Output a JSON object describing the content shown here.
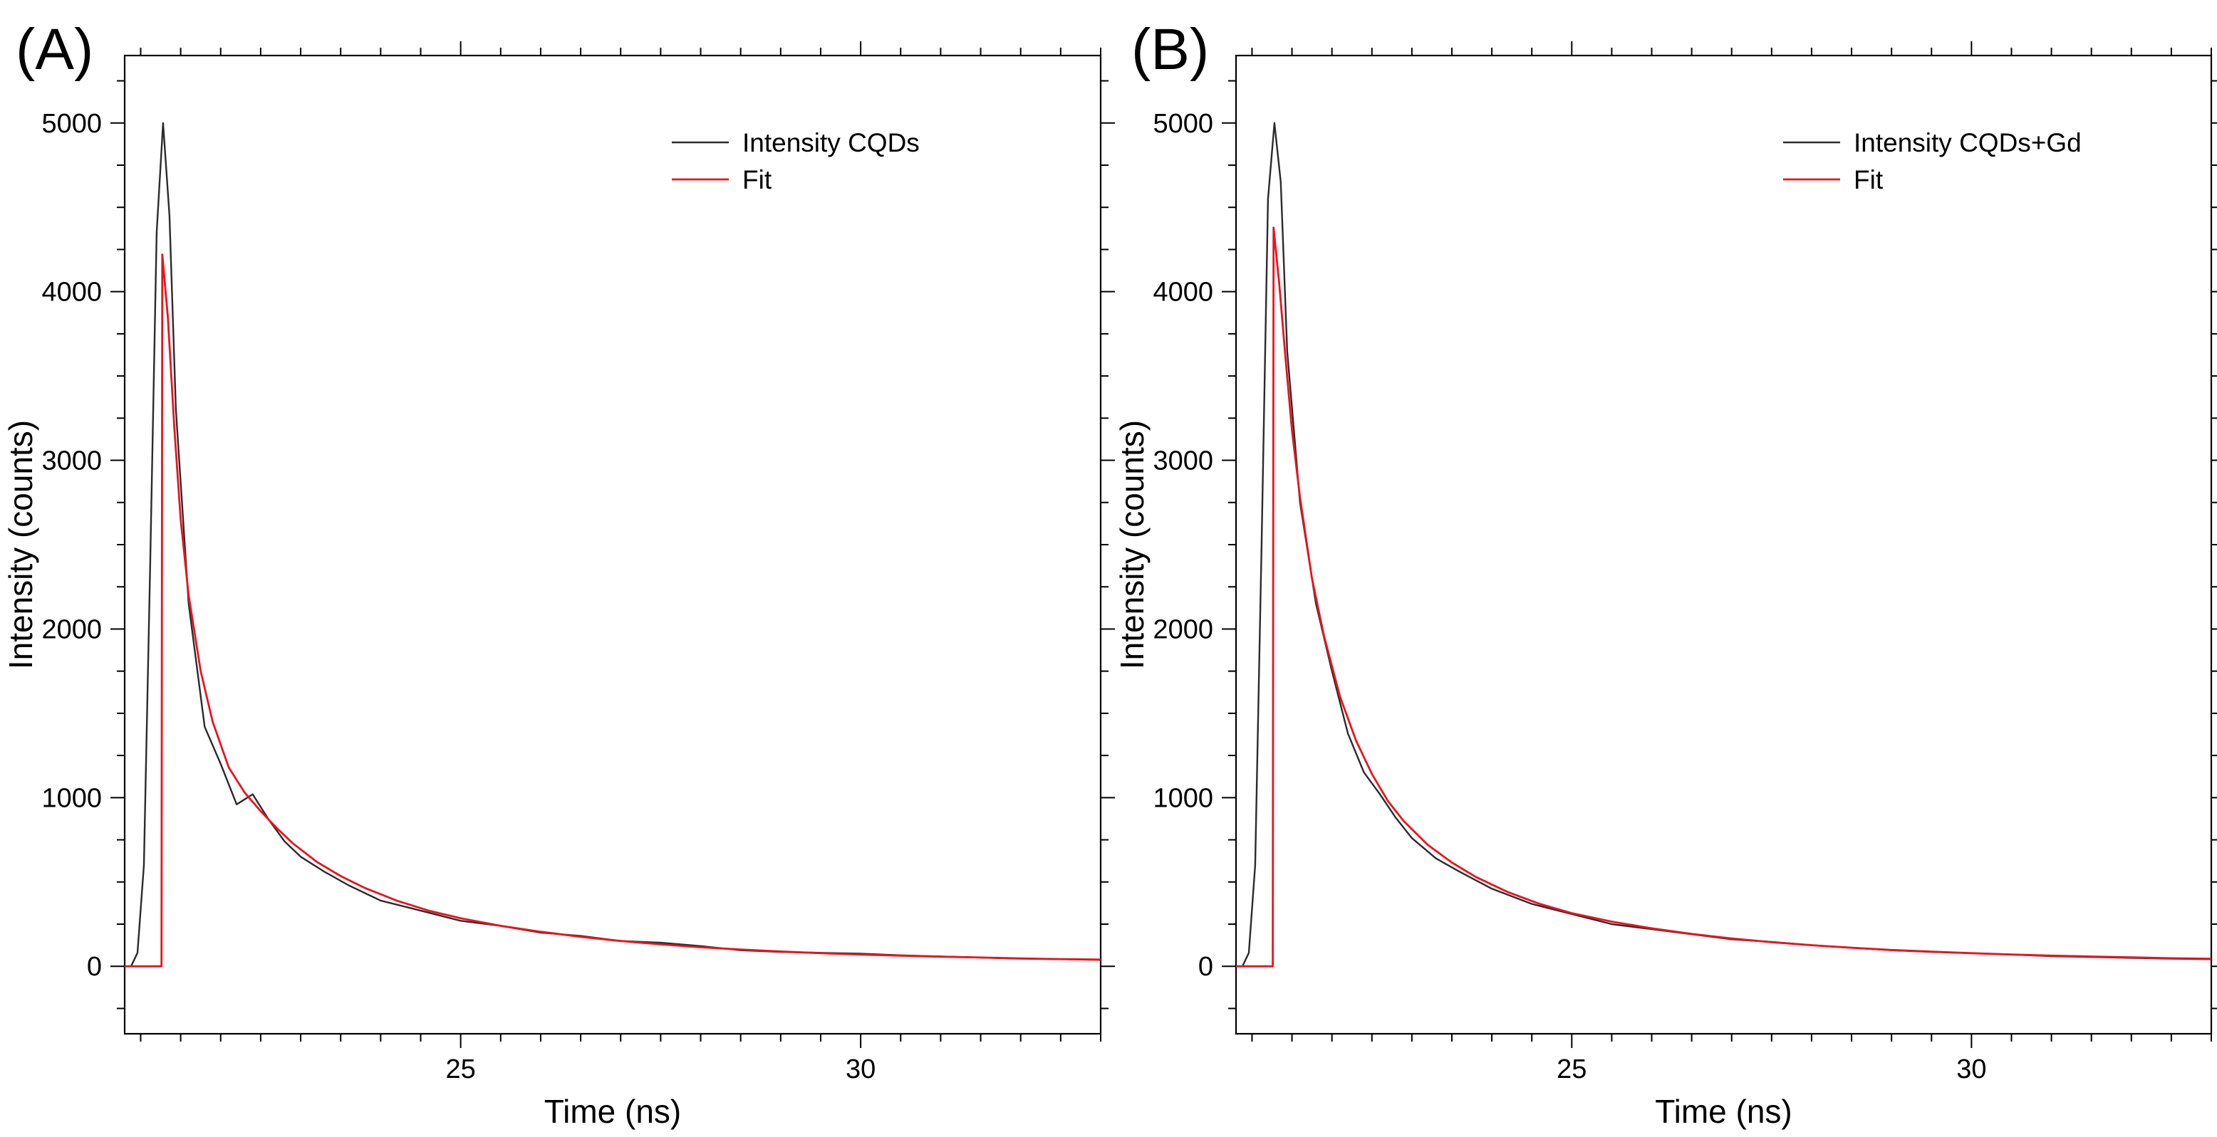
{
  "chart_data": [
    {
      "type": "line",
      "panel": "(A)",
      "xlabel": "Time (ns)",
      "ylabel": "Intensity (counts)",
      "xlim": [
        20.8,
        33.0
      ],
      "ylim": [
        -400,
        5400
      ],
      "x_ticks": [
        25,
        30
      ],
      "y_ticks": [
        0,
        1000,
        2000,
        3000,
        4000,
        5000
      ],
      "grid": false,
      "legend_position": "top-right",
      "series": [
        {
          "name": "Intensity CQDs",
          "color": "#2b2b2b",
          "x": [
            20.8,
            20.88,
            20.96,
            21.04,
            21.12,
            21.2,
            21.28,
            21.36,
            21.44,
            21.6,
            21.8,
            22.0,
            22.2,
            22.4,
            22.6,
            22.8,
            23.0,
            23.3,
            23.6,
            24.0,
            24.5,
            25.0,
            25.5,
            26.0,
            26.5,
            27.0,
            27.5,
            28.0,
            28.5,
            29.0,
            29.5,
            30.0,
            30.5,
            31.0,
            31.5,
            32.0,
            32.5,
            33.0
          ],
          "values": [
            0,
            0,
            80,
            600,
            2400,
            4350,
            5000,
            4450,
            3300,
            2150,
            1420,
            1200,
            960,
            1020,
            870,
            740,
            650,
            560,
            480,
            390,
            330,
            270,
            240,
            200,
            180,
            150,
            140,
            120,
            95,
            85,
            80,
            75,
            65,
            58,
            52,
            45,
            42,
            38
          ]
        },
        {
          "name": "Fit",
          "color": "#e8141e",
          "x": [
            20.8,
            21.26,
            21.27,
            21.34,
            21.42,
            21.5,
            21.6,
            21.75,
            21.9,
            22.1,
            22.3,
            22.5,
            22.7,
            22.9,
            23.2,
            23.5,
            23.8,
            24.2,
            24.6,
            25.0,
            25.5,
            26.0,
            26.5,
            27.0,
            27.5,
            28.0,
            28.5,
            29.0,
            29.5,
            30.0,
            30.5,
            31.0,
            31.5,
            32.0,
            32.5,
            33.0
          ],
          "values": [
            0,
            0,
            4220,
            3850,
            3200,
            2650,
            2200,
            1750,
            1450,
            1180,
            1030,
            920,
            820,
            730,
            620,
            535,
            465,
            390,
            330,
            285,
            240,
            205,
            175,
            150,
            130,
            113,
            100,
            88,
            78,
            70,
            63,
            57,
            52,
            47,
            43,
            40
          ]
        }
      ]
    },
    {
      "type": "line",
      "panel": "(B)",
      "xlabel": "Time (ns)",
      "ylabel": "Intensity (counts)",
      "xlim": [
        20.8,
        33.0
      ],
      "ylim": [
        -400,
        5400
      ],
      "x_ticks": [
        25,
        30
      ],
      "y_ticks": [
        0,
        1000,
        2000,
        3000,
        4000,
        5000
      ],
      "grid": false,
      "legend_position": "top-right",
      "series": [
        {
          "name": "Intensity CQDs+Gd",
          "color": "#2b2b2b",
          "x": [
            20.8,
            20.88,
            20.96,
            21.04,
            21.12,
            21.2,
            21.28,
            21.36,
            21.44,
            21.6,
            21.8,
            22.0,
            22.2,
            22.4,
            22.6,
            22.8,
            23.0,
            23.3,
            23.6,
            24.0,
            24.5,
            25.0,
            25.5,
            26.0,
            26.5,
            27.0,
            27.5,
            28.0,
            28.5,
            29.0,
            29.5,
            30.0,
            30.5,
            31.0,
            31.5,
            32.0,
            32.5,
            33.0
          ],
          "values": [
            0,
            0,
            80,
            600,
            2500,
            4550,
            5000,
            4650,
            3650,
            2750,
            2150,
            1750,
            1380,
            1150,
            1020,
            880,
            760,
            640,
            560,
            460,
            370,
            310,
            250,
            220,
            190,
            160,
            145,
            125,
            110,
            95,
            85,
            78,
            70,
            60,
            55,
            50,
            45,
            42
          ]
        },
        {
          "name": "Fit",
          "color": "#e8141e",
          "x": [
            20.8,
            21.26,
            21.27,
            21.34,
            21.42,
            21.5,
            21.6,
            21.75,
            21.9,
            22.1,
            22.3,
            22.5,
            22.7,
            22.9,
            23.2,
            23.5,
            23.8,
            24.2,
            24.6,
            25.0,
            25.5,
            26.0,
            26.5,
            27.0,
            27.5,
            28.0,
            28.5,
            29.0,
            29.5,
            30.0,
            30.5,
            31.0,
            31.5,
            32.0,
            32.5,
            33.0
          ],
          "values": [
            0,
            0,
            4380,
            4050,
            3600,
            3180,
            2780,
            2300,
            1960,
            1600,
            1340,
            1140,
            980,
            860,
            720,
            615,
            530,
            440,
            370,
            315,
            265,
            225,
            192,
            165,
            143,
            125,
            110,
            97,
            87,
            78,
            70,
            63,
            58,
            53,
            48,
            45
          ]
        }
      ]
    }
  ]
}
